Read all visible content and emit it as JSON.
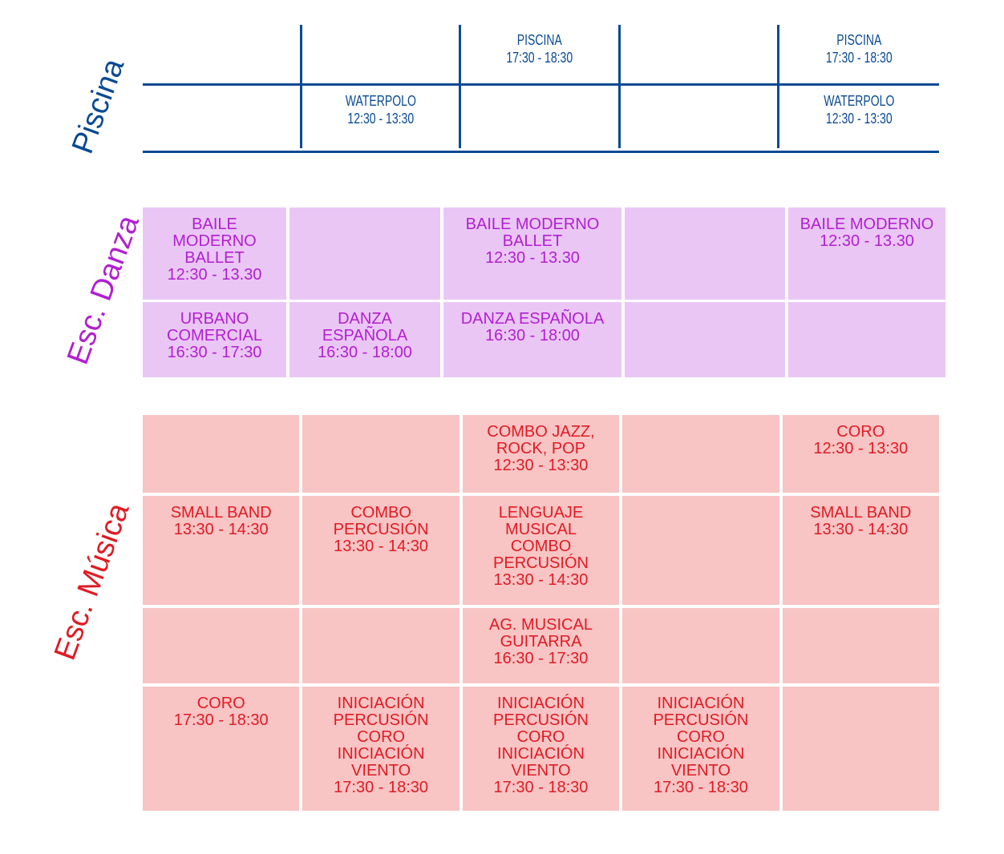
{
  "sections": {
    "piscina": {
      "label": "Piscina",
      "color": "#0a4a94",
      "rows": [
        [
          "",
          "",
          "PISCINA|17:30  -  18:30",
          "",
          "PISCINA|17:30  -  18:30"
        ],
        [
          "",
          "WATERPOLO|12:30  -  13:30",
          "",
          "",
          "WATERPOLO|12:30  -  13:30"
        ]
      ]
    },
    "danza": {
      "label": "Esc. Danza",
      "color": "#b21fd1",
      "rows": [
        [
          "BAILE|MODERNO|BALLET|12:30 - 13.30",
          "",
          "BAILE MODERNO|BALLET|12:30 - 13.30",
          "",
          "BAILE MODERNO|12:30 - 13.30"
        ],
        [
          "URBANO|COMERCIAL|16:30 - 17:30",
          "DANZA|ESPAÑOLA|16:30 - 18:00",
          "DANZA ESPAÑOLA|16:30 - 18:00",
          "",
          ""
        ]
      ]
    },
    "musica": {
      "label": "Esc. Música",
      "color": "#e01b24",
      "rows": [
        [
          "",
          "",
          "COMBO JAZZ,|ROCK, POP|12:30 - 13:30",
          "",
          "CORO|12:30 - 13:30"
        ],
        [
          "SMALL BAND|13:30 - 14:30",
          "COMBO|PERCUSIÓN|13:30 - 14:30",
          "LENGUAJE|MUSICAL|COMBO|PERCUSIÓN|13:30 - 14:30",
          "",
          "SMALL BAND|13:30 - 14:30"
        ],
        [
          "",
          "",
          "AG. MUSICAL|GUITARRA|16:30 - 17:30",
          "",
          ""
        ],
        [
          "CORO|17:30 - 18:30",
          "INICIACIÓN|PERCUSIÓN|CORO|INICIACIÓN|VIENTO|17:30 - 18:30",
          "INICIACIÓN|PERCUSIÓN|CORO|INICIACIÓN|VIENTO|17:30 - 18:30",
          "INICIACIÓN|PERCUSIÓN|CORO|INICIACIÓN|VIENTO|17:30 - 18:30",
          ""
        ]
      ]
    }
  }
}
